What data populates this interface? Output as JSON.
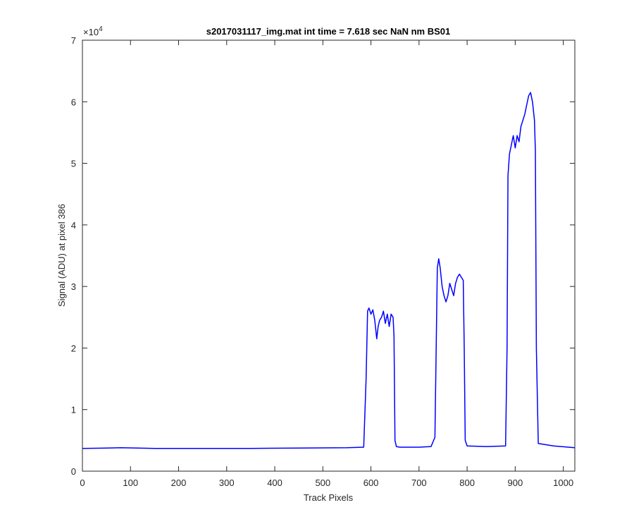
{
  "chart_data": {
    "type": "line",
    "title": "s2017031117_img.mat int time = 7.618 sec  NaN nm BS01",
    "xlabel": "Track Pixels",
    "ylabel": "Signal (ADU) at pixel 386",
    "y_exponent_label": "×10",
    "y_exponent_power": "4",
    "xlim": [
      0,
      1024
    ],
    "ylim": [
      0,
      70000
    ],
    "x_ticks": [
      0,
      100,
      200,
      300,
      400,
      500,
      600,
      700,
      800,
      900,
      1000
    ],
    "y_ticks": [
      0,
      10000,
      20000,
      30000,
      40000,
      50000,
      60000,
      70000
    ],
    "y_tick_labels": [
      "0",
      "1",
      "2",
      "3",
      "4",
      "5",
      "6",
      "7"
    ],
    "grid": false,
    "line_color": "#0000ff",
    "series": [
      {
        "x": [
          0,
          50,
          80,
          150,
          250,
          350,
          450,
          550,
          585,
          590,
          593,
          596,
          600,
          604,
          608,
          612,
          615,
          618,
          622,
          626,
          630,
          634,
          638,
          642,
          646,
          648,
          650,
          653,
          660,
          700,
          725,
          733,
          738,
          741,
          744,
          748,
          752,
          756,
          760,
          764,
          768,
          772,
          776,
          780,
          784,
          788,
          792,
          794,
          796,
          800,
          840,
          880,
          883,
          885,
          888,
          892,
          896,
          900,
          904,
          908,
          912,
          916,
          920,
          924,
          928,
          932,
          936,
          940,
          942,
          944,
          948,
          980,
          1024
        ],
        "y": [
          3700,
          3750,
          3800,
          3700,
          3700,
          3700,
          3750,
          3800,
          3900,
          15000,
          26000,
          26500,
          25500,
          26200,
          24500,
          21500,
          23500,
          24500,
          25000,
          26000,
          24000,
          25500,
          23500,
          25500,
          25000,
          22000,
          5000,
          4000,
          3900,
          3900,
          4000,
          5500,
          33000,
          34500,
          33000,
          30000,
          28500,
          27500,
          28500,
          30500,
          29500,
          28500,
          30500,
          31500,
          32000,
          31500,
          31000,
          20000,
          5000,
          4100,
          4000,
          4100,
          20000,
          48000,
          51500,
          53000,
          54500,
          52500,
          54500,
          53500,
          56000,
          57000,
          58000,
          59500,
          61000,
          61500,
          60000,
          57000,
          52000,
          20000,
          4500,
          4100,
          3800
        ]
      }
    ]
  }
}
